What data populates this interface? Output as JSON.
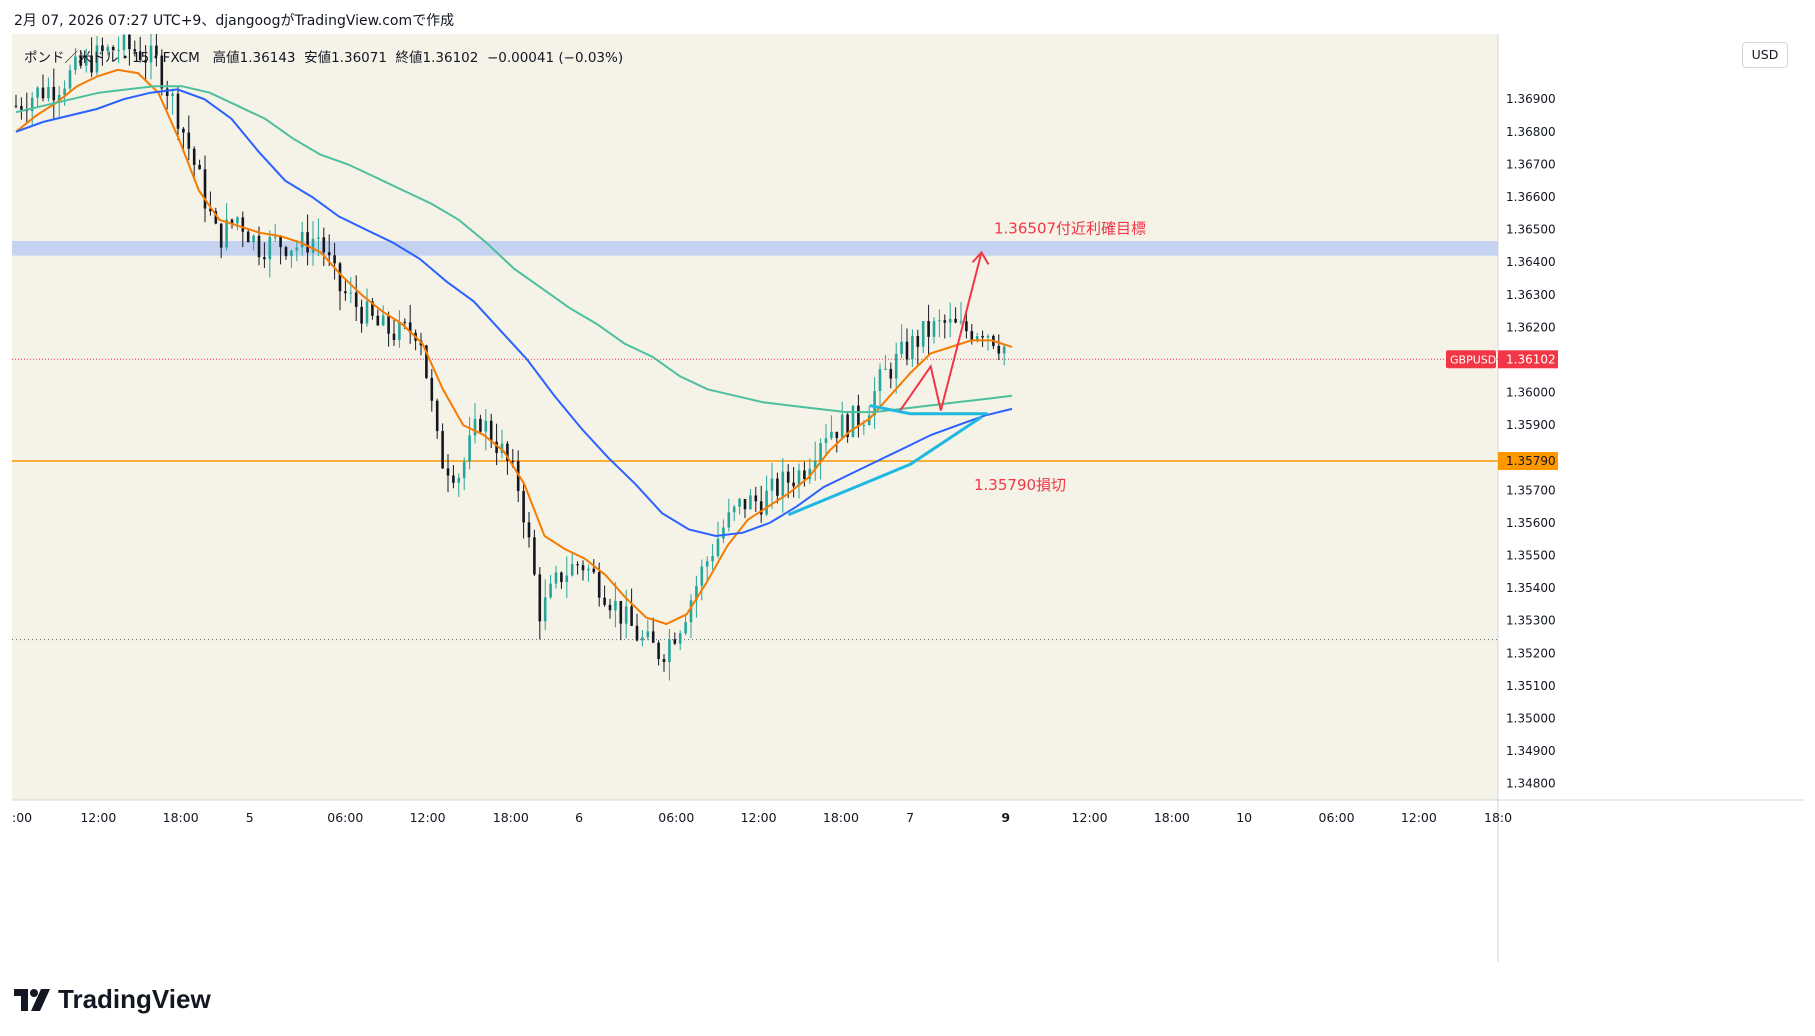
{
  "header": {
    "title": "2月 07, 2026 07:27 UTC+9、djangoogがTradingView.comで作成"
  },
  "legend": {
    "symbol": "ポンド／米ドル・15・FXCM",
    "high_label": "高値",
    "high": "1.36143",
    "low_label": "安値",
    "low": "1.36071",
    "close_label": "終値",
    "close": "1.36102",
    "change": "−0.00041 (−0.03%)"
  },
  "currency_button": "USD",
  "brand": "TradingView",
  "colors": {
    "background": "#f5f2e8",
    "up_candle": "#26a69a",
    "down_candle": "#131722",
    "ema_fast": "#f57c00",
    "ema_mid": "#2962ff",
    "ema_slow": "#4dbf9f",
    "zone": "#c5d3f0",
    "stop_line": "#ff9800",
    "annotation": "#f23645",
    "trend": "#1fb8e0"
  },
  "chart_data": {
    "type": "candlestick",
    "symbol": "GBPUSD",
    "timeframe": "15",
    "ylim": [
      1.3475,
      1.371
    ],
    "yticks": [
      "1.36900",
      "1.36800",
      "1.36700",
      "1.36600",
      "1.36500",
      "1.36400",
      "1.36300",
      "1.36200",
      "1.36100",
      "1.36000",
      "1.35900",
      "1.35700",
      "1.35600",
      "1.35500",
      "1.35400",
      "1.35300",
      "1.35200",
      "1.35100",
      "1.35000",
      "1.34900",
      "1.34800"
    ],
    "xticks": [
      ":00",
      "12:00",
      "18:00",
      "5",
      "06:00",
      "12:00",
      "18:00",
      "6",
      "06:00",
      "12:00",
      "18:00",
      "7",
      "9",
      "12:00",
      "18:00",
      "10",
      "06:00",
      "12:00",
      "18:0"
    ],
    "current_price": {
      "label": "GBPUSD",
      "value": "1.36102",
      "price": 1.36102
    },
    "stop_price": {
      "value": "1.35790",
      "price": 1.3579
    },
    "zone": {
      "low": 1.3642,
      "high": 1.36465
    },
    "annotations": [
      {
        "text": "1.36507付近利確目標",
        "price": 1.36507
      },
      {
        "text": "1.35790損切",
        "price": 1.3572
      }
    ],
    "dotted_low_price": 1.35242,
    "price_path": [
      [
        0,
        1.3688
      ],
      [
        1,
        1.3692
      ],
      [
        2,
        1.3694
      ],
      [
        3,
        1.3699
      ],
      [
        4,
        1.3703
      ],
      [
        5,
        1.3706
      ],
      [
        6,
        1.3705
      ],
      [
        7,
        1.3701
      ],
      [
        8,
        1.3686
      ],
      [
        9,
        1.3667
      ],
      [
        10,
        1.3647
      ],
      [
        11,
        1.3654
      ],
      [
        12,
        1.3645
      ],
      [
        13,
        1.3646
      ],
      [
        14,
        1.3645
      ],
      [
        15,
        1.3648
      ],
      [
        16,
        1.3632
      ],
      [
        17,
        1.3626
      ],
      [
        18,
        1.362
      ],
      [
        19,
        1.3618
      ],
      [
        20,
        1.362
      ],
      [
        21,
        1.358
      ],
      [
        22,
        1.3575
      ],
      [
        23,
        1.3592
      ],
      [
        24,
        1.3583
      ],
      [
        25,
        1.357
      ],
      [
        26,
        1.3532
      ],
      [
        27,
        1.3544
      ],
      [
        28,
        1.3548
      ],
      [
        29,
        1.3541
      ],
      [
        30,
        1.3532
      ],
      [
        31,
        1.3524
      ],
      [
        32,
        1.352
      ],
      [
        33,
        1.353
      ],
      [
        34,
        1.3545
      ],
      [
        35,
        1.3558
      ],
      [
        36,
        1.3566
      ],
      [
        37,
        1.3567
      ],
      [
        38,
        1.3572
      ],
      [
        39,
        1.3576
      ],
      [
        40,
        1.3588
      ],
      [
        41,
        1.359
      ],
      [
        42,
        1.3593
      ],
      [
        43,
        1.3605
      ],
      [
        44,
        1.3612
      ],
      [
        45,
        1.3618
      ],
      [
        46,
        1.3621
      ],
      [
        47,
        1.3619
      ],
      [
        48,
        1.362
      ],
      [
        49,
        1.3614
      ]
    ],
    "series": [
      {
        "name": "",
        "values": [
          1.368,
          1.3685,
          1.3689,
          1.3694,
          1.3697,
          1.3699,
          1.3698,
          1.3692,
          1.3678,
          1.3662,
          1.3653,
          1.3651,
          1.3649,
          1.3648,
          1.3646,
          1.3643,
          1.3636,
          1.363,
          1.3625,
          1.3621,
          1.3615,
          1.3601,
          1.359,
          1.3587,
          1.3582,
          1.3572,
          1.3556,
          1.3552,
          1.3549,
          1.3544,
          1.3537,
          1.3531,
          1.3529,
          1.3532,
          1.3542,
          1.3553,
          1.3561,
          1.3565,
          1.3569,
          1.3574,
          1.3582,
          1.3588,
          1.3592,
          1.3599,
          1.3606,
          1.3612,
          1.3614,
          1.3616,
          1.3616,
          1.3614
        ]
      },
      {
        "name": "",
        "values": [
          1.368,
          1.3683,
          1.3685,
          1.3687,
          1.369,
          1.3692,
          1.3693,
          1.369,
          1.3684,
          1.3674,
          1.3665,
          1.366,
          1.3654,
          1.365,
          1.3646,
          1.3641,
          1.3634,
          1.3628,
          1.3619,
          1.361,
          1.3599,
          1.3589,
          1.358,
          1.3572,
          1.3563,
          1.3558,
          1.3556,
          1.3557,
          1.356,
          1.3565,
          1.3571,
          1.3575,
          1.3579,
          1.3583,
          1.3587,
          1.359,
          1.3593,
          1.3595
        ]
      },
      {
        "name": "",
        "values": [
          1.3686,
          1.3688,
          1.369,
          1.3692,
          1.3693,
          1.3694,
          1.3694,
          1.3692,
          1.3688,
          1.3684,
          1.3678,
          1.3673,
          1.367,
          1.3666,
          1.3662,
          1.3658,
          1.3653,
          1.3646,
          1.3638,
          1.3632,
          1.3626,
          1.3621,
          1.3615,
          1.3611,
          1.3605,
          1.3601,
          1.3599,
          1.3597,
          1.3596,
          1.3595,
          1.3594,
          1.3594,
          1.3595,
          1.3596,
          1.3597,
          1.3598,
          1.3599
        ]
      }
    ]
  }
}
